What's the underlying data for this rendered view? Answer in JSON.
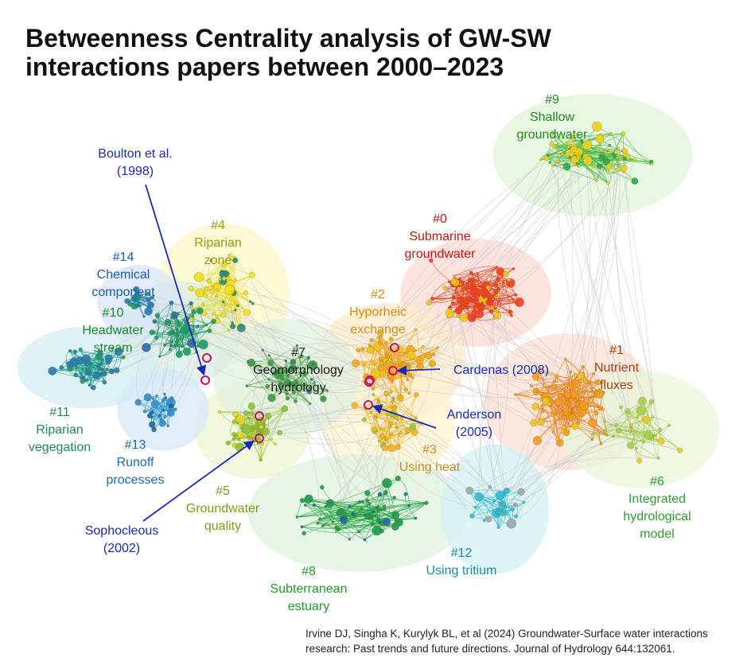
{
  "title_lines": [
    "Betweenness Centrality analysis of GW-SW",
    "interactions papers between 2000–2023"
  ],
  "clusters": [
    {
      "id": "#0",
      "lines": [
        "Submarine",
        "groundwater"
      ],
      "color": "#c8160f",
      "halo": "#fbd9d3",
      "node": "#f0411d",
      "edge": "#ea3b20",
      "node2": "#f5c518"
    },
    {
      "id": "#1",
      "lines": [
        "Nutrient",
        "fluxes"
      ],
      "color": "#a8400f",
      "halo": "#fbe0d3",
      "node": "#f59a1a",
      "edge": "#f07a1a",
      "node2": "#f5c518"
    },
    {
      "id": "#2",
      "lines": [
        "Hyporheic",
        "exchange"
      ],
      "color": "#d98a10",
      "halo": "#fdebc8",
      "node": "#f2a81a",
      "edge": "#f0a21c",
      "node2": "#f5c518"
    },
    {
      "id": "#3",
      "lines": [
        "Using heat"
      ],
      "color": "#c8901a",
      "halo": "#fdf2cf",
      "node": "#f2b41c",
      "edge": "#e9b21e",
      "node2": "#9ec53a"
    },
    {
      "id": "#4",
      "lines": [
        "Riparian",
        "zone"
      ],
      "color": "#9a9a14",
      "halo": "#fbf6c6",
      "node": "#f2e01c",
      "edge": "#e6d61e",
      "node2": "#2a8a7a"
    },
    {
      "id": "#5",
      "lines": [
        "Groundwater",
        "quality"
      ],
      "color": "#7a9e14",
      "halo": "#eef6cf",
      "node": "#8fc234",
      "edge": "#9ec53a",
      "node2": "#e6d61e"
    },
    {
      "id": "#6",
      "lines": [
        "Integrated",
        "hydrological",
        "model"
      ],
      "color": "#2e9e2e",
      "halo": "#e8f5d8",
      "node": "#a6d04a",
      "edge": "#9ccb4a",
      "node2": "#f5c518"
    },
    {
      "id": "#7",
      "lines": [
        "Geomorphology",
        "hydrology"
      ],
      "color": "#1a1a1a",
      "halo": "#dff0df",
      "node": "#3a9a4a",
      "edge": "#5aaa4e",
      "node2": "#2a7a8a"
    },
    {
      "id": "#8",
      "lines": [
        "Subterranean",
        "estuary"
      ],
      "color": "#1f9a2a",
      "halo": "#dff2dc",
      "node": "#1e9a4a",
      "edge": "#2aa84a",
      "node2": "#1a6aa8"
    },
    {
      "id": "#9",
      "lines": [
        "Shallow",
        "groundwater"
      ],
      "color": "#1f8a1f",
      "halo": "#e0f4d8",
      "node": "#f2d01c",
      "edge": "#46b83a",
      "node2": "#2aa84a"
    },
    {
      "id": "#10",
      "lines": [
        "Headwater",
        "stream"
      ],
      "color": "#1a8a2a",
      "halo": "#d9eee6",
      "node": "#1a9a6a",
      "edge": "#1e9a6a",
      "node2": "#2a6ab0"
    },
    {
      "id": "#11",
      "lines": [
        "Riparian",
        "vegegation"
      ],
      "color": "#1a8a5a",
      "halo": "#d6eef2",
      "node": "#2a7ab0",
      "edge": "#1ea890",
      "node2": "#1a9a6a"
    },
    {
      "id": "#12",
      "lines": [
        "Using tritium"
      ],
      "color": "#1a8aa8",
      "halo": "#d4f0f4",
      "node": "#2abfd6",
      "edge": "#2abfd6",
      "node2": "#9aa8a8"
    },
    {
      "id": "#13",
      "lines": [
        "Runoff",
        "processes"
      ],
      "color": "#1a6ab0",
      "halo": "#d6e8f8",
      "node": "#2a8fd6",
      "edge": "#2a9ad6",
      "node2": "#1a6aa8"
    },
    {
      "id": "#14",
      "lines": [
        "Chemical",
        "component"
      ],
      "color": "#1a5ab8",
      "halo": "#d8e6f8",
      "node": "#1e7ab8",
      "edge": "#1e7ab8",
      "node2": "#1a9a6a"
    }
  ],
  "highlighted_papers": [
    {
      "lines": [
        "Boulton et al.",
        "(1998)"
      ],
      "cluster": "#10"
    },
    {
      "lines": [
        "Cardenas (2008)"
      ],
      "cluster": "#2"
    },
    {
      "lines": [
        "Anderson",
        "(2005)"
      ],
      "cluster": "#2"
    },
    {
      "lines": [
        "Sophocleous",
        "(2002)"
      ],
      "cluster": "#5"
    }
  ],
  "citation_lines": [
    "Irvine DJ, Singha K, Kurylyk BL, et al (2024) Groundwater-Surface water interactions",
    "research: Past trends and future directions. Journal of Hydrology 644:132061."
  ],
  "colors": {
    "annotation": "#1a2ab8",
    "highlight_ring": "#c8106a",
    "inter_cluster_edge": "#c8c8c8"
  }
}
